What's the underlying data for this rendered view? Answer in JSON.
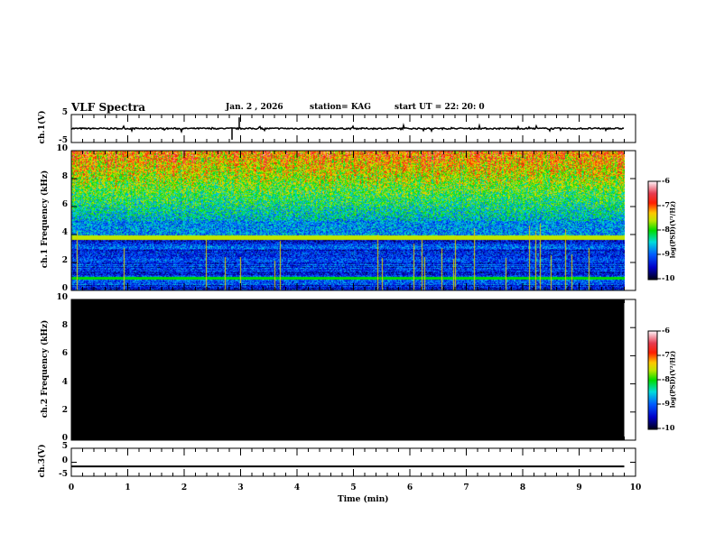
{
  "header": {
    "title": "VLF Spectra",
    "date": "Jan. 2 , 2026",
    "station": "station= KAG",
    "start": "start  UT =   22: 20: 0"
  },
  "chart_data": [
    {
      "type": "line",
      "name": "ch1",
      "ylabel": "ch.1(V)",
      "ylim": [
        -5,
        5
      ],
      "yticks": [
        "5",
        "-5"
      ],
      "xlim": [
        0,
        10
      ],
      "data_end_min": 9.8,
      "baseline": 0
    },
    {
      "type": "heatmap",
      "name": "ch1-spectrogram",
      "ylabel": "ch.1 Frequency (kHz)",
      "ylim": [
        0,
        10
      ],
      "yticks": [
        "10",
        "8",
        "6",
        "4",
        "2",
        "0"
      ],
      "xlim": [
        0,
        10
      ],
      "colorbar": {
        "label": "log(PSD)(V²/Hz)",
        "range": [
          -10,
          -6
        ],
        "ticks": [
          "-6",
          "-7",
          "-8",
          "-9",
          "-10"
        ]
      }
    },
    {
      "type": "heatmap",
      "name": "ch2-spectrogram",
      "ylabel": "ch.2 Frequency (kHz)",
      "ylim": [
        0,
        10
      ],
      "yticks": [
        "10",
        "8",
        "6",
        "4",
        "2",
        "0"
      ],
      "xlim": [
        0,
        10
      ],
      "fill": "#000000",
      "colorbar": {
        "label": "log(PSD)(V²/Hz)",
        "range": [
          -10,
          -6
        ],
        "ticks": [
          "-6",
          "-7",
          "-8",
          "-9",
          "-10"
        ]
      }
    },
    {
      "type": "line",
      "name": "ch3",
      "ylabel": "ch.3(V)",
      "ylim": [
        -5,
        5
      ],
      "yticks": [
        "5",
        "0",
        "-5"
      ],
      "xlim": [
        0,
        10
      ],
      "baseline": -1.5
    }
  ],
  "xaxis": {
    "label": "Time (min)",
    "ticks": [
      "0",
      "1",
      "2",
      "3",
      "4",
      "5",
      "6",
      "7",
      "8",
      "9",
      "10"
    ]
  }
}
